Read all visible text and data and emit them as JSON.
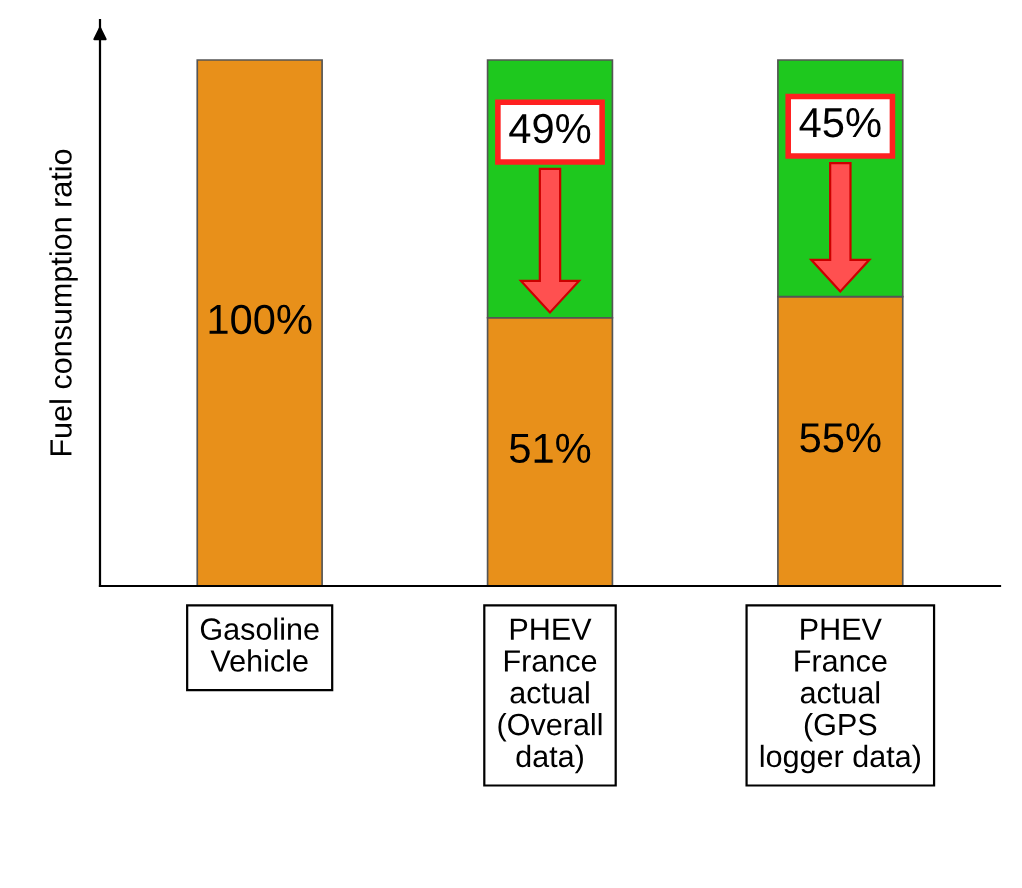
{
  "chart_data": {
    "type": "bar",
    "stacked": true,
    "ylabel": "Fuel consumption ratio",
    "categories": [
      "Gasoline\nVehicle",
      "PHEV\nFrance\nactual\n(Overall\ndata)",
      "PHEV\nFrance\nactual\n(GPS\nlogger data)"
    ],
    "series": [
      {
        "color": "#e8901a",
        "values": [
          100,
          51,
          55
        ],
        "value_labels": [
          "100%",
          "51%",
          "55%"
        ]
      },
      {
        "color": "#1ec81e",
        "values": [
          null,
          49,
          45
        ],
        "value_labels": [
          null,
          "49%",
          "45%"
        ]
      }
    ]
  }
}
